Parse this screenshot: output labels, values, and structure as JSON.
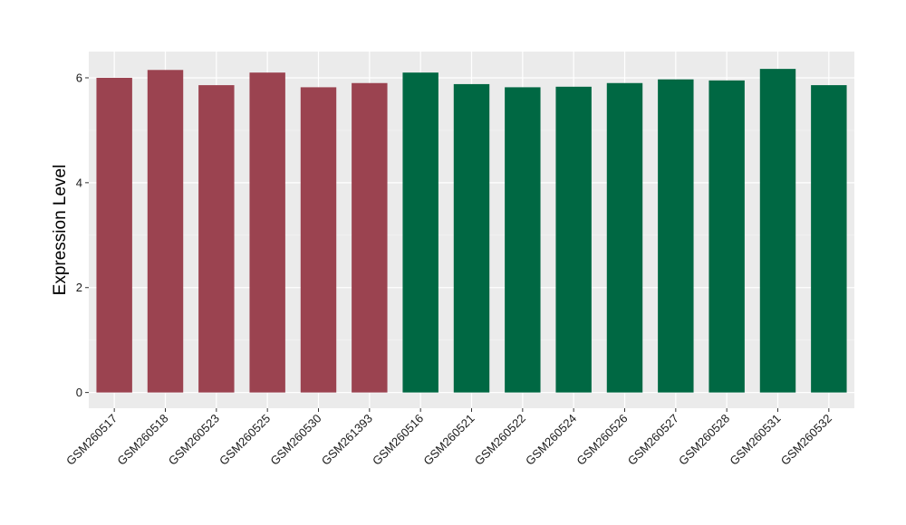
{
  "chart_data": {
    "type": "bar",
    "title": "",
    "xlabel": "",
    "ylabel": "Expression Level",
    "ylim": [
      -0.3,
      6.5
    ],
    "yticks": [
      0,
      2,
      4,
      6
    ],
    "grid": true,
    "legend": "none",
    "categories": [
      "GSM260517",
      "GSM260518",
      "GSM260523",
      "GSM260525",
      "GSM260530",
      "GSM261393",
      "GSM260516",
      "GSM260521",
      "GSM260522",
      "GSM260524",
      "GSM260526",
      "GSM260527",
      "GSM260528",
      "GSM260531",
      "GSM260532"
    ],
    "values": [
      6.0,
      6.15,
      5.86,
      6.1,
      5.82,
      5.9,
      6.1,
      5.88,
      5.82,
      5.83,
      5.9,
      5.97,
      5.95,
      6.17,
      5.86
    ],
    "groups": [
      0,
      0,
      0,
      0,
      0,
      0,
      1,
      1,
      1,
      1,
      1,
      1,
      1,
      1,
      1
    ],
    "group_colors": [
      "#9b4350",
      "#006843"
    ]
  }
}
